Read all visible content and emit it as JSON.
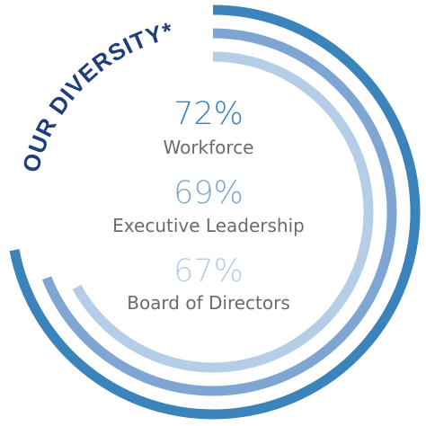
{
  "chart_data": {
    "type": "radial-bar",
    "title": "OUR DIVERSITY*",
    "unit": "%",
    "max": 100,
    "series": [
      {
        "name": "Workforce",
        "value": 72,
        "display": "72%",
        "color": "#3a83bb",
        "text_color": "#3a83bb"
      },
      {
        "name": "Executive Leadership",
        "value": 69,
        "display": "69%",
        "color": "#7fa6d3",
        "text_color": "#7fa6d3"
      },
      {
        "name": "Board of Directors",
        "value": 67,
        "display": "67%",
        "color": "#b6cde8",
        "text_color": "#b6cde8"
      }
    ]
  },
  "colors": {
    "title": "#1e3d7b",
    "label_text": "#6b6b6b"
  }
}
